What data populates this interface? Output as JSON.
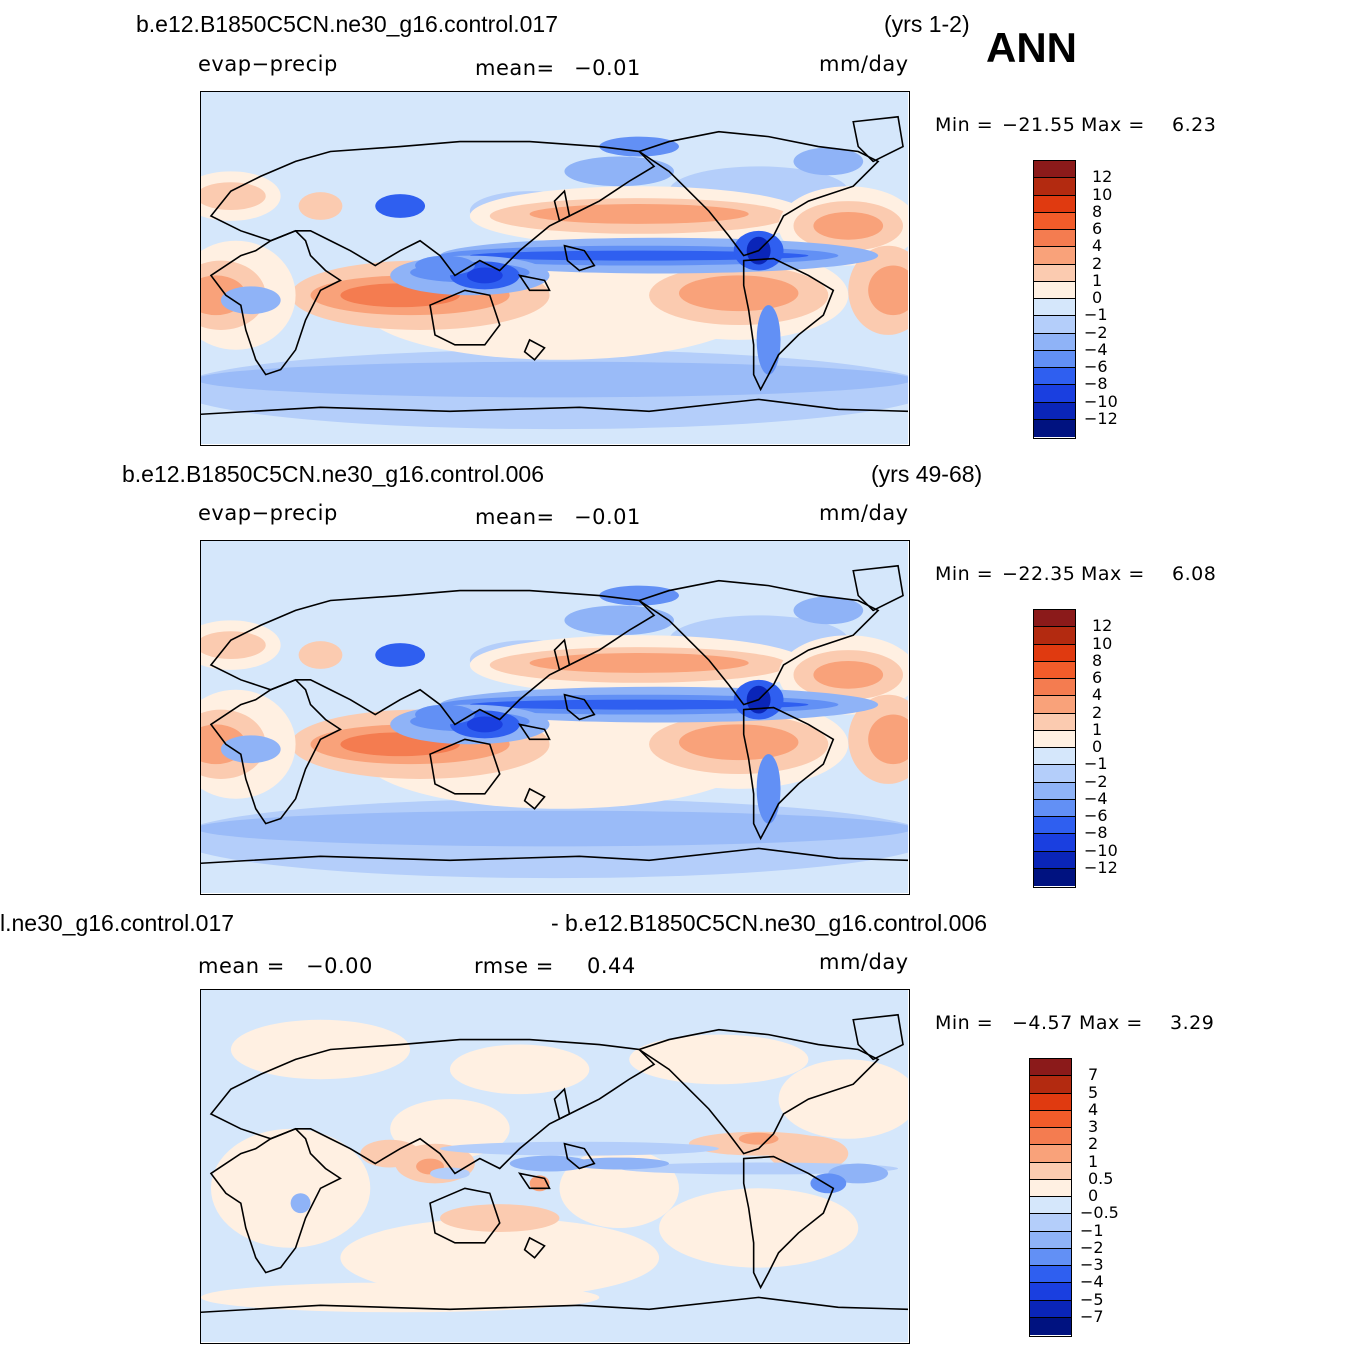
{
  "season_label": "ANN",
  "palette": {
    "warm": [
      "#8b1a1a",
      "#b32a10",
      "#e03a10",
      "#f25c2a",
      "#f47c50",
      "#f9a27a",
      "#fbcbb0",
      "#fff0e2"
    ],
    "cold": [
      "#d5e7fb",
      "#b4cefa",
      "#8fb3f7",
      "#6290f5",
      "#2f5ff0",
      "#1a3fe0",
      "#0a25b8",
      "#001280"
    ],
    "continent_outline": "#000000"
  },
  "panels": [
    {
      "case_title": "b.e12.B1850C5CN.ne30_g16.control.017",
      "years": "(yrs 1-2)",
      "variable": "evap−precip",
      "stat1_label": "mean=",
      "stat1_value": "−0.01",
      "units": "mm/day",
      "min_label": "Min  =",
      "min_value": "−21.55",
      "max_label": "Max  =",
      "max_value": "6.23",
      "colorbar_ticks": [
        "12",
        "10",
        "8",
        "6",
        "4",
        "2",
        "1",
        "0",
        "−1",
        "−2",
        "−4",
        "−6",
        "−8",
        "−10",
        "−12"
      ]
    },
    {
      "case_title": "b.e12.B1850C5CN.ne30_g16.control.006",
      "years": "(yrs 49-68)",
      "variable": "evap−precip",
      "stat1_label": "mean=",
      "stat1_value": "−0.01",
      "units": "mm/day",
      "min_label": "Min  =",
      "min_value": "−22.35",
      "max_label": "Max  =",
      "max_value": "6.08",
      "colorbar_ticks": [
        "12",
        "10",
        "8",
        "6",
        "4",
        "2",
        "1",
        "0",
        "−1",
        "−2",
        "−4",
        "−6",
        "−8",
        "−10",
        "−12"
      ]
    },
    {
      "case_title_left": "l.ne30_g16.control.017",
      "case_title_right": "- b.e12.B1850C5CN.ne30_g16.control.006",
      "stat1_label": "mean  =",
      "stat1_value": "−0.00",
      "stat2_label": "rmse  =",
      "stat2_value": "0.44",
      "units": "mm/day",
      "min_label": "Min  =",
      "min_value": "−4.57",
      "max_label": "Max  =",
      "max_value": "3.29",
      "colorbar_ticks": [
        "7",
        "5",
        "4",
        "3",
        "2",
        "1",
        "0.5",
        "0",
        "−0.5",
        "−1",
        "−2",
        "−3",
        "−4",
        "−5",
        "−7"
      ]
    }
  ]
}
